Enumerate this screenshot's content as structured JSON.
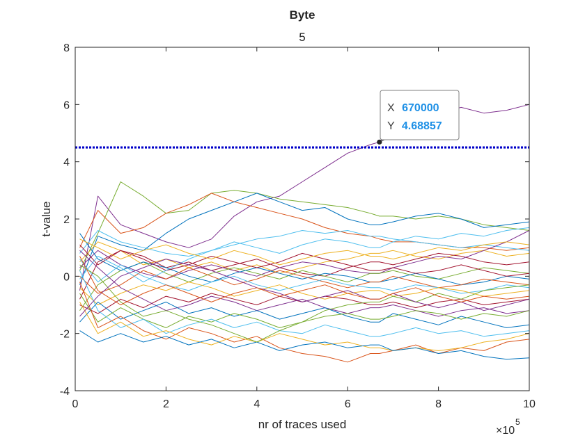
{
  "chart_data": {
    "type": "line",
    "title": "Byte",
    "subtitle": "5",
    "xlabel": "nr of traces used",
    "ylabel": "t-value",
    "x_exponent_label": "×10",
    "x_exponent_power": "5",
    "x_scale_factor": 100000,
    "xlim": [
      0,
      1000000
    ],
    "ylim": [
      -4,
      8
    ],
    "x_ticks": [
      0,
      200000,
      400000,
      600000,
      800000,
      1000000
    ],
    "x_tick_labels": [
      "0",
      "2",
      "4",
      "6",
      "8",
      "10"
    ],
    "y_ticks": [
      -4,
      -2,
      0,
      2,
      4,
      6,
      8
    ],
    "y_tick_labels": [
      "-4",
      "-2",
      "0",
      "2",
      "4",
      "6",
      "8"
    ],
    "grid": false,
    "legend": "none",
    "threshold": {
      "y": 4.5,
      "color": "#0000c8",
      "style": "dotted"
    },
    "datatip": {
      "x": 670000,
      "y": 4.68857,
      "x_label": "X",
      "y_label": "Y",
      "x_text": "670000",
      "y_text": "4.68857",
      "value_color": "#1e90e6"
    },
    "x": [
      10000,
      50000,
      100000,
      150000,
      200000,
      250000,
      300000,
      350000,
      400000,
      450000,
      500000,
      550000,
      600000,
      650000,
      670000,
      700000,
      750000,
      800000,
      850000,
      900000,
      950000,
      1000000
    ],
    "series": [
      {
        "color": "#7e2f8e",
        "values": [
          -0.5,
          2.8,
          1.8,
          1.5,
          1.2,
          1.0,
          1.3,
          2.1,
          2.6,
          2.8,
          3.3,
          3.8,
          4.3,
          4.6,
          4.69,
          5.2,
          5.5,
          5.7,
          5.9,
          5.7,
          5.8,
          6.0
        ]
      },
      {
        "color": "#77ac30",
        "values": [
          0.2,
          1.5,
          3.3,
          2.8,
          2.2,
          2.3,
          2.9,
          3.0,
          2.9,
          2.7,
          2.6,
          2.5,
          2.4,
          2.2,
          2.1,
          2.1,
          2.0,
          2.1,
          2.0,
          1.8,
          1.7,
          1.6
        ]
      },
      {
        "color": "#d95319",
        "values": [
          1.0,
          2.3,
          1.5,
          1.7,
          2.2,
          2.5,
          2.9,
          2.6,
          2.4,
          2.2,
          2.0,
          1.7,
          1.5,
          1.4,
          1.3,
          1.2,
          1.2,
          1.1,
          1.0,
          1.0,
          0.9,
          1.0
        ]
      },
      {
        "color": "#0072bd",
        "values": [
          -0.3,
          1.4,
          1.1,
          0.9,
          1.5,
          2.0,
          2.3,
          2.6,
          2.9,
          2.6,
          2.3,
          2.4,
          2.0,
          1.8,
          1.8,
          1.9,
          2.1,
          2.2,
          2.0,
          1.7,
          1.8,
          1.9
        ]
      },
      {
        "color": "#4dbeee",
        "values": [
          0.8,
          1.6,
          1.2,
          1.0,
          0.8,
          0.7,
          0.9,
          1.1,
          1.3,
          1.4,
          1.6,
          1.5,
          1.6,
          1.4,
          1.4,
          1.3,
          1.2,
          1.1,
          1.0,
          1.1,
          1.0,
          0.9
        ]
      },
      {
        "color": "#edb120",
        "values": [
          0.5,
          1.2,
          0.9,
          0.4,
          0.6,
          0.3,
          0.5,
          0.2,
          0.4,
          0.1,
          0.3,
          0.5,
          0.6,
          0.8,
          0.8,
          0.9,
          0.7,
          0.6,
          0.8,
          0.9,
          0.7,
          0.8
        ]
      },
      {
        "color": "#a2142f",
        "values": [
          -0.8,
          0.5,
          0.9,
          0.7,
          0.3,
          0.5,
          0.2,
          0.4,
          0.6,
          0.3,
          0.1,
          0.0,
          0.3,
          0.5,
          0.5,
          0.4,
          0.6,
          0.8,
          0.7,
          0.5,
          0.4,
          0.5
        ]
      },
      {
        "color": "#7e2f8e",
        "values": [
          0.3,
          0.9,
          0.4,
          0.1,
          -0.1,
          0.2,
          0.4,
          0.2,
          0.0,
          0.3,
          0.5,
          0.4,
          0.2,
          0.1,
          0.1,
          0.3,
          0.5,
          0.7,
          0.6,
          0.9,
          1.2,
          1.6
        ]
      },
      {
        "color": "#77ac30",
        "values": [
          -1.2,
          -0.3,
          0.2,
          0.5,
          0.1,
          -0.2,
          0.1,
          0.3,
          0.1,
          -0.1,
          0.2,
          0.0,
          -0.2,
          0.1,
          0.1,
          0.2,
          0.0,
          -0.1,
          0.1,
          0.3,
          0.2,
          0.1
        ]
      },
      {
        "color": "#0072bd",
        "values": [
          1.5,
          0.6,
          0.2,
          0.5,
          0.3,
          0.0,
          -0.2,
          0.1,
          0.3,
          0.1,
          -0.1,
          0.1,
          0.0,
          -0.2,
          -0.2,
          -0.1,
          0.1,
          -0.1,
          -0.3,
          -0.2,
          0.0,
          -0.1
        ]
      },
      {
        "color": "#d95319",
        "values": [
          0.0,
          -0.6,
          -0.3,
          0.2,
          -0.1,
          0.3,
          0.0,
          -0.3,
          -0.1,
          0.2,
          0.0,
          -0.2,
          -0.4,
          -0.2,
          -0.2,
          0.0,
          -0.2,
          -0.4,
          -0.3,
          -0.1,
          -0.2,
          -0.3
        ]
      },
      {
        "color": "#4dbeee",
        "values": [
          0.6,
          -0.2,
          0.4,
          0.0,
          -0.3,
          -0.5,
          -0.2,
          0.0,
          -0.3,
          -0.5,
          -0.3,
          -0.1,
          -0.3,
          -0.4,
          -0.4,
          -0.5,
          -0.3,
          -0.4,
          -0.6,
          -0.5,
          -0.3,
          -0.4
        ]
      },
      {
        "color": "#edb120",
        "values": [
          -0.4,
          -1.0,
          -0.6,
          -0.3,
          -0.5,
          -0.2,
          -0.4,
          -0.7,
          -0.5,
          -0.3,
          -0.6,
          -0.8,
          -0.6,
          -0.5,
          -0.5,
          -0.7,
          -0.6,
          -0.4,
          -0.5,
          -0.7,
          -0.6,
          -0.5
        ]
      },
      {
        "color": "#a2142f",
        "values": [
          -1.0,
          -1.3,
          -0.8,
          -1.1,
          -0.7,
          -0.9,
          -0.6,
          -0.8,
          -1.0,
          -0.7,
          -0.9,
          -0.7,
          -0.8,
          -1.0,
          -1.0,
          -0.9,
          -1.1,
          -0.9,
          -0.8,
          -1.0,
          -0.9,
          -0.8
        ]
      },
      {
        "color": "#7e2f8e",
        "values": [
          0.9,
          0.3,
          -0.4,
          -0.8,
          -1.2,
          -1.0,
          -0.7,
          -0.9,
          -1.2,
          -1.0,
          -0.8,
          -1.1,
          -1.3,
          -1.1,
          -1.1,
          -1.0,
          -1.2,
          -1.4,
          -1.2,
          -1.1,
          -1.3,
          -1.2
        ]
      },
      {
        "color": "#0072bd",
        "values": [
          -1.6,
          -0.9,
          -1.5,
          -1.2,
          -0.9,
          -1.3,
          -1.1,
          -1.4,
          -1.2,
          -1.5,
          -1.3,
          -1.1,
          -1.4,
          -1.6,
          -1.6,
          -1.3,
          -1.5,
          -1.7,
          -1.4,
          -1.6,
          -1.8,
          -1.7
        ]
      },
      {
        "color": "#77ac30",
        "values": [
          -0.6,
          -1.6,
          -1.1,
          -1.5,
          -1.8,
          -1.4,
          -1.6,
          -1.3,
          -1.5,
          -1.8,
          -1.6,
          -1.4,
          -1.3,
          -1.5,
          -1.5,
          -1.4,
          -1.2,
          -1.3,
          -1.5,
          -1.3,
          -1.4,
          -1.2
        ]
      },
      {
        "color": "#4dbeee",
        "values": [
          0.2,
          -1.2,
          -1.8,
          -1.5,
          -2.0,
          -1.7,
          -1.5,
          -1.8,
          -1.6,
          -1.9,
          -2.0,
          -1.7,
          -1.9,
          -2.1,
          -2.1,
          -2.0,
          -1.8,
          -2.0,
          -1.9,
          -2.1,
          -2.0,
          -1.9
        ]
      },
      {
        "color": "#d95319",
        "values": [
          -0.2,
          -1.8,
          -1.4,
          -1.9,
          -2.2,
          -1.8,
          -2.0,
          -2.3,
          -2.1,
          -2.5,
          -2.7,
          -2.8,
          -3.0,
          -2.7,
          -2.7,
          -2.6,
          -2.4,
          -2.7,
          -2.5,
          -2.6,
          -2.3,
          -2.2
        ]
      },
      {
        "color": "#edb120",
        "values": [
          -0.9,
          -2.0,
          -1.6,
          -2.1,
          -1.9,
          -2.2,
          -2.4,
          -2.1,
          -2.3,
          -2.0,
          -2.2,
          -2.4,
          -2.3,
          -2.5,
          -2.5,
          -2.6,
          -2.5,
          -2.6,
          -2.5,
          -2.3,
          -2.2,
          -2.0
        ]
      },
      {
        "color": "#0072bd",
        "values": [
          -1.9,
          -2.3,
          -2.0,
          -2.3,
          -2.1,
          -2.4,
          -2.2,
          -2.5,
          -2.3,
          -2.6,
          -2.4,
          -2.3,
          -2.5,
          -2.4,
          -2.4,
          -2.6,
          -2.5,
          -2.7,
          -2.6,
          -2.8,
          -2.9,
          -2.85
        ]
      },
      {
        "color": "#77ac30",
        "values": [
          0.4,
          0.0,
          -0.9,
          -1.4,
          -1.2,
          -1.5,
          -1.7,
          -2.0,
          -2.3,
          -1.9,
          -1.6,
          -1.2,
          -1.0,
          -0.9,
          -0.9,
          -0.7,
          -0.9,
          -0.6,
          -0.8,
          -0.5,
          -0.4,
          -0.3
        ]
      },
      {
        "color": "#a2142f",
        "values": [
          1.1,
          0.4,
          0.9,
          0.6,
          0.2,
          0.4,
          0.7,
          0.5,
          0.3,
          0.5,
          0.8,
          0.6,
          0.4,
          0.2,
          0.2,
          0.3,
          0.1,
          0.2,
          0.4,
          0.2,
          0.0,
          0.1
        ]
      },
      {
        "color": "#4dbeee",
        "values": [
          -0.1,
          0.7,
          0.3,
          -0.2,
          0.2,
          0.6,
          0.9,
          1.2,
          1.0,
          0.8,
          1.1,
          1.3,
          1.2,
          1.0,
          1.0,
          1.2,
          1.4,
          1.3,
          1.5,
          1.4,
          1.6,
          1.7
        ]
      },
      {
        "color": "#7e2f8e",
        "values": [
          -1.4,
          -0.7,
          0.0,
          0.3,
          0.6,
          0.4,
          0.2,
          -0.1,
          -0.4,
          -0.6,
          -0.9,
          -0.7,
          -0.5,
          -0.8,
          -0.8,
          -0.6,
          -0.9,
          -1.1,
          -0.9,
          -1.2,
          -1.0,
          -0.8
        ]
      },
      {
        "color": "#edb120",
        "values": [
          1.3,
          1.0,
          0.6,
          0.9,
          1.1,
          0.8,
          0.6,
          0.9,
          0.7,
          0.4,
          0.6,
          0.8,
          0.9,
          0.7,
          0.7,
          0.6,
          0.8,
          1.0,
          0.9,
          1.1,
          1.2,
          1.1
        ]
      },
      {
        "color": "#d95319",
        "values": [
          0.7,
          -0.5,
          -1.0,
          -0.6,
          -0.3,
          -0.6,
          -0.9,
          -0.6,
          -0.4,
          -0.7,
          -0.5,
          -0.3,
          -0.6,
          -0.8,
          -0.8,
          -0.6,
          -0.4,
          -0.7,
          -0.9,
          -0.7,
          -0.8,
          -0.7
        ]
      }
    ]
  }
}
